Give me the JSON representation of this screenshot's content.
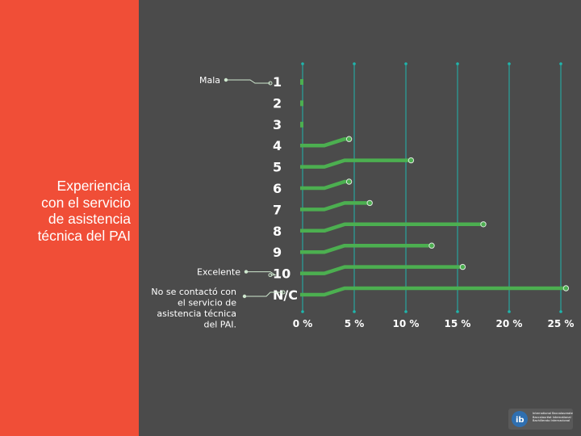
{
  "slide": {
    "title": "Experiencia\ncon el servicio\nde asistencia\ntécnica del PAI",
    "logo_text": "International Baccalaureate\nBaccalauréat International\nBachillerato Internacional"
  },
  "colors": {
    "left_panel": "#f04e37",
    "background": "#4b4b4b",
    "accent": "#4caf50",
    "grid": "#1fb5ac",
    "text": "#ffffff"
  },
  "chart_data": {
    "type": "bar",
    "orientation": "horizontal",
    "categories": [
      "1",
      "2",
      "3",
      "4",
      "5",
      "6",
      "7",
      "8",
      "9",
      "10",
      "N/C"
    ],
    "values": [
      0,
      0,
      0,
      4.5,
      10.5,
      4.5,
      6.5,
      17.5,
      12.5,
      15.5,
      25.5
    ],
    "xticks": [
      "0 %",
      "5 %",
      "10 %",
      "15 %",
      "20 %",
      "25 %"
    ],
    "xlim": [
      0,
      25
    ],
    "annotations": [
      {
        "text": "Mala",
        "category": "1"
      },
      {
        "text": "Excelente",
        "category": "10"
      },
      {
        "text": "No se contactó con\nel servicio de\nasistencia técnica\ndel PAI.",
        "category": "N/C"
      }
    ],
    "grid": true
  }
}
